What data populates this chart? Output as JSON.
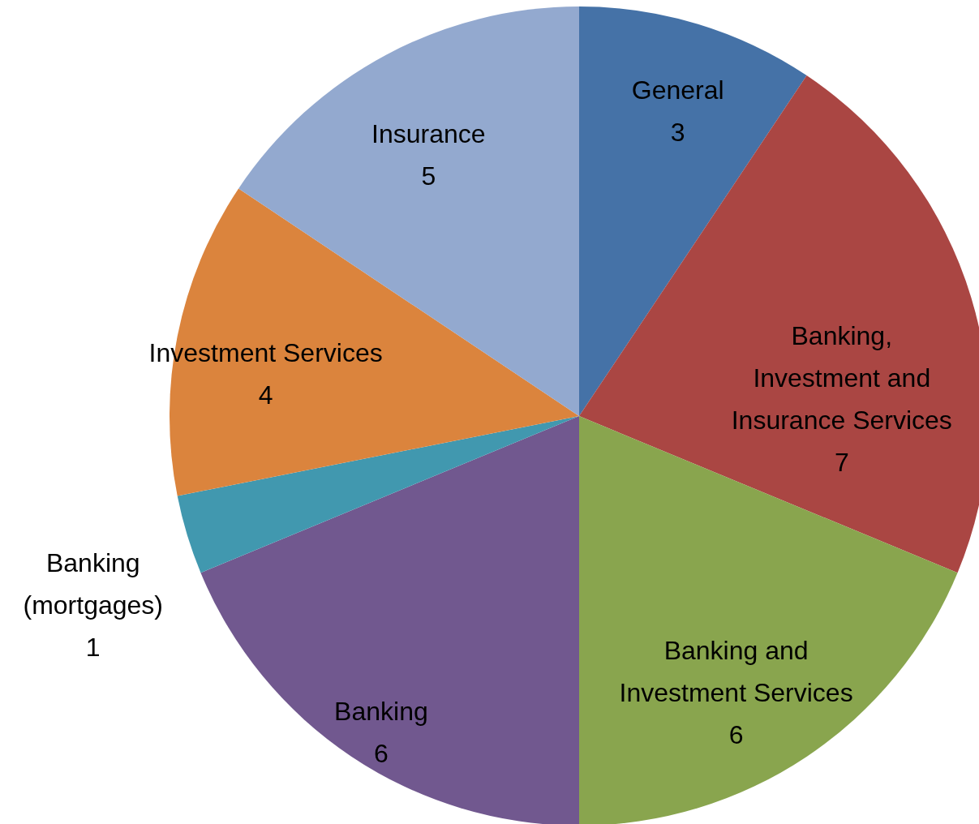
{
  "chart_data": {
    "type": "pie",
    "categories": [
      "General",
      "Banking, Investment and Insurance Services",
      "Banking and Investment Services",
      "Banking",
      "Banking (mortgages)",
      "Investment Services",
      "Insurance"
    ],
    "values": [
      3,
      7,
      6,
      6,
      1,
      4,
      5
    ],
    "colors": [
      "#4572a7",
      "#aa4643",
      "#89a54e",
      "#71588f",
      "#4198af",
      "#db843d",
      "#93a9cf"
    ],
    "data_labels": true
  }
}
